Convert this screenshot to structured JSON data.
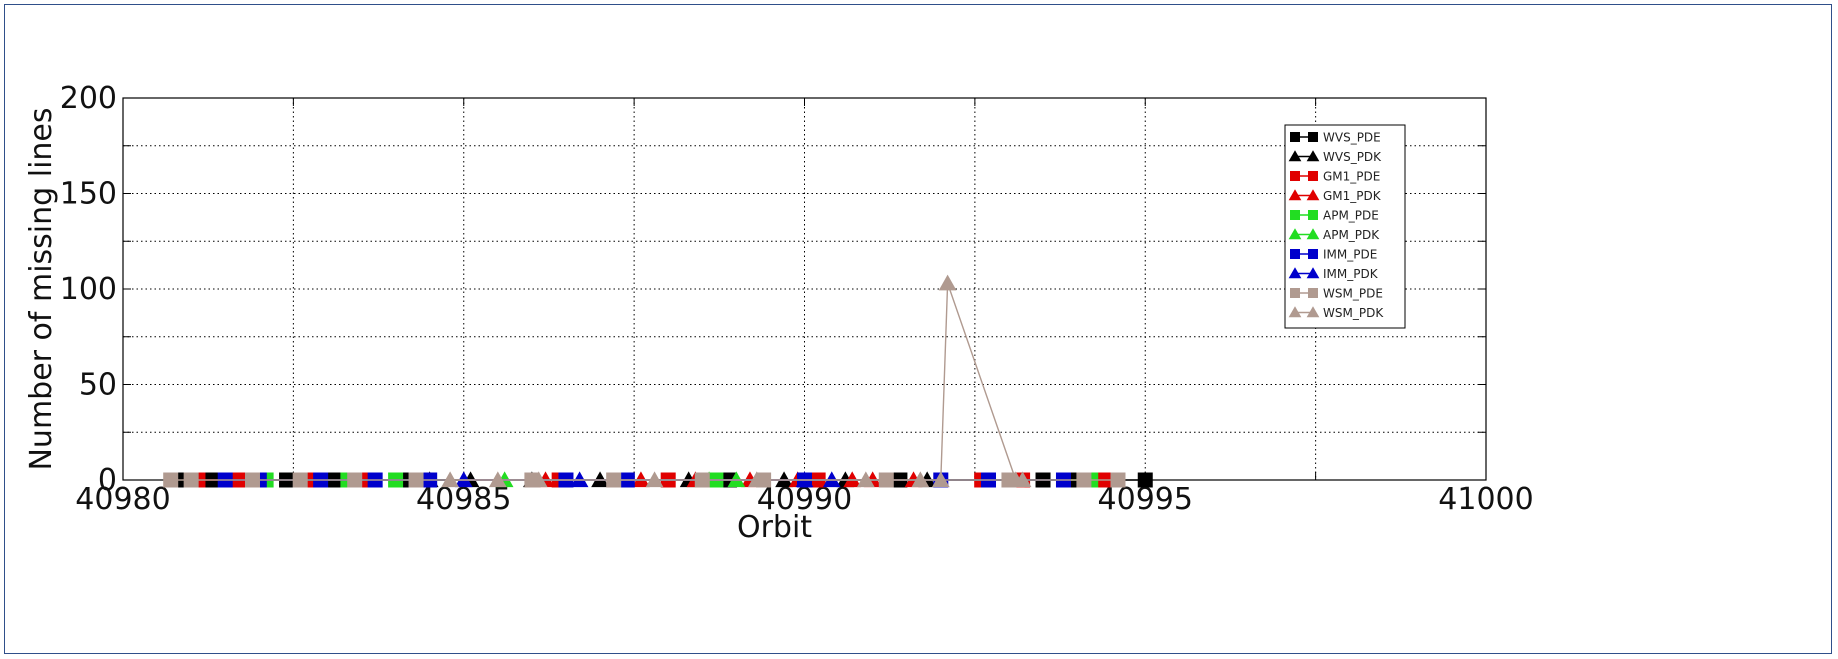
{
  "chart_data": {
    "type": "scatter",
    "xlabel": "Orbit",
    "ylabel": "Number of missing lines",
    "xlim": [
      40980,
      41000
    ],
    "ylim": [
      0,
      200
    ],
    "xticks": [
      40980,
      40985,
      40990,
      40995,
      41000
    ],
    "yticks": [
      0,
      50,
      100,
      150,
      200
    ],
    "grid": true,
    "legend_position": "top-right",
    "series": [
      {
        "name": "WVS_PDE",
        "color": "#000000",
        "marker": "square",
        "x": [
          40980.8,
          40981.3,
          40982.4,
          40983.1,
          40984.2,
          40988.9,
          40991.4,
          40993.5,
          40994.0,
          40995.0
        ],
        "y": [
          0,
          0,
          0,
          0,
          0,
          0,
          0,
          0,
          0,
          0
        ]
      },
      {
        "name": "WVS_PDK",
        "color": "#000000",
        "marker": "triangle",
        "x": [
          40984.5,
          40985.1,
          40986.0,
          40987.0,
          40988.3,
          40989.7,
          40990.6,
          40991.8
        ],
        "y": [
          0,
          0,
          0,
          0,
          0,
          0,
          0,
          0
        ]
      },
      {
        "name": "GM1_PDE",
        "color": "#e00000",
        "marker": "square",
        "x": [
          40981.1,
          40981.7,
          40982.7,
          40983.6,
          40986.4,
          40988.0,
          40990.2,
          40992.6,
          40993.2,
          40994.4
        ],
        "y": [
          0,
          0,
          0,
          0,
          0,
          0,
          0,
          0,
          0,
          0
        ]
      },
      {
        "name": "GM1_PDK",
        "color": "#e00000",
        "marker": "triangle",
        "x": [
          40986.2,
          40987.6,
          40988.4,
          40989.2,
          40989.9,
          40990.7,
          40991.0,
          40991.6
        ],
        "y": [
          0,
          0,
          0,
          0,
          0,
          0,
          0,
          0
        ]
      },
      {
        "name": "APM_PDE",
        "color": "#22dd22",
        "marker": "square",
        "x": [
          40982.1,
          40983.3,
          40984.0,
          40988.7,
          40994.2
        ],
        "y": [
          0,
          0,
          0,
          0,
          0
        ]
      },
      {
        "name": "APM_PDK",
        "color": "#22dd22",
        "marker": "triangle",
        "x": [
          40985.6,
          40988.6,
          40989.0
        ],
        "y": [
          0,
          0,
          0
        ]
      },
      {
        "name": "IMM_PDE",
        "color": "#0000cc",
        "marker": "square",
        "x": [
          40981.5,
          40982.0,
          40982.9,
          40983.7,
          40984.5,
          40986.5,
          40987.4,
          40990.0,
          40992.0,
          40992.7,
          40993.8
        ],
        "y": [
          0,
          0,
          0,
          0,
          0,
          0,
          0,
          0,
          0,
          0,
          0
        ]
      },
      {
        "name": "IMM_PDK",
        "color": "#0000cc",
        "marker": "triangle",
        "x": [
          40985.0,
          40986.7,
          40990.0,
          40990.4
        ],
        "y": [
          0,
          0,
          0,
          0
        ]
      },
      {
        "name": "WSM_PDE",
        "color": "#b09a90",
        "marker": "square",
        "x": [
          40980.7,
          40981.0,
          40981.9,
          40982.6,
          40983.4,
          40984.3,
          40986.0,
          40987.2,
          40988.5,
          40989.4,
          40991.2,
          40993.0,
          40994.1,
          40994.6
        ],
        "y": [
          0,
          0,
          0,
          0,
          0,
          0,
          0,
          0,
          0,
          0,
          0,
          0,
          0,
          0
        ]
      },
      {
        "name": "WSM_PDK",
        "color": "#b09a90",
        "marker": "triangle",
        "x": [
          40984.8,
          40985.5,
          40986.1,
          40987.8,
          40989.3,
          40990.9,
          40991.7,
          40992.0,
          40992.1,
          40993.1,
          40993.2
        ],
        "y": [
          0,
          0,
          0,
          0,
          0,
          0,
          0,
          0,
          103,
          0,
          0
        ]
      }
    ]
  }
}
